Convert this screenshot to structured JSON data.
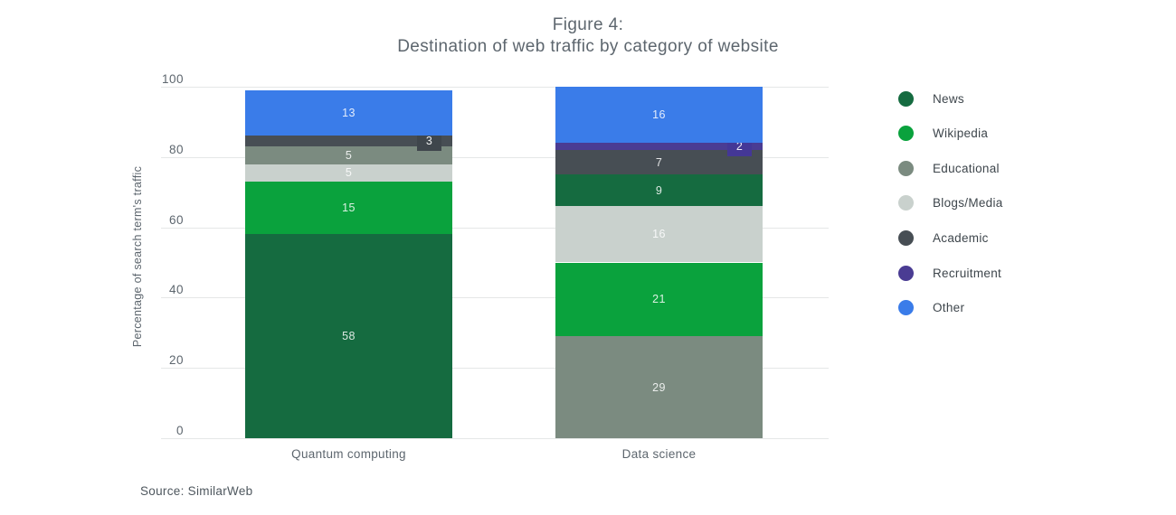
{
  "title": {
    "line1": "Figure 4:",
    "line2": "Destination of web traffic by category of website"
  },
  "source": "Source: SimilarWeb",
  "chart_data": {
    "type": "bar",
    "stacked": true,
    "title": "Figure 4: Destination of web traffic by category of website",
    "ylabel": "Percentage of search term's traffic",
    "xlabel": "",
    "ylim": [
      0,
      100
    ],
    "yticks": [
      0,
      20,
      40,
      60,
      80,
      100
    ],
    "grid": "horizontal",
    "legend_position": "right",
    "categories": [
      "Quantum computing",
      "Data science"
    ],
    "legend": [
      {
        "label": "News",
        "color": "#156b40"
      },
      {
        "label": "Wikipedia",
        "color": "#0aa23d"
      },
      {
        "label": "Educational",
        "color": "#7b8b80"
      },
      {
        "label": "Blogs/Media",
        "color": "#c9d1cd"
      },
      {
        "label": "Academic",
        "color": "#474e54"
      },
      {
        "label": "Recruitment",
        "color": "#4a3c93"
      },
      {
        "label": "Other",
        "color": "#3a7ce9"
      }
    ],
    "callout_colors": {
      "Academic": "#3f464c",
      "Recruitment": "#443796"
    },
    "bars": [
      {
        "category": "Quantum computing",
        "segments_bottom_up": [
          {
            "name": "News",
            "value": 58,
            "label": "inside"
          },
          {
            "name": "Wikipedia",
            "value": 15,
            "label": "inside"
          },
          {
            "name": "Blogs/Media",
            "value": 5,
            "label": "inside"
          },
          {
            "name": "Educational",
            "value": 5,
            "label": "inside"
          },
          {
            "name": "Academic",
            "value": 3,
            "label": "callout"
          },
          {
            "name": "Other",
            "value": 13,
            "label": "inside"
          }
        ]
      },
      {
        "category": "Data science",
        "segments_bottom_up": [
          {
            "name": "Educational",
            "value": 29,
            "label": "inside"
          },
          {
            "name": "Wikipedia",
            "value": 21,
            "label": "inside"
          },
          {
            "name": "Blogs/Media",
            "value": 16,
            "label": "inside"
          },
          {
            "name": "News",
            "value": 9,
            "label": "inside"
          },
          {
            "name": "Academic",
            "value": 7,
            "label": "inside"
          },
          {
            "name": "Recruitment",
            "value": 2,
            "label": "callout"
          },
          {
            "name": "Other",
            "value": 16,
            "label": "inside"
          }
        ]
      }
    ]
  }
}
